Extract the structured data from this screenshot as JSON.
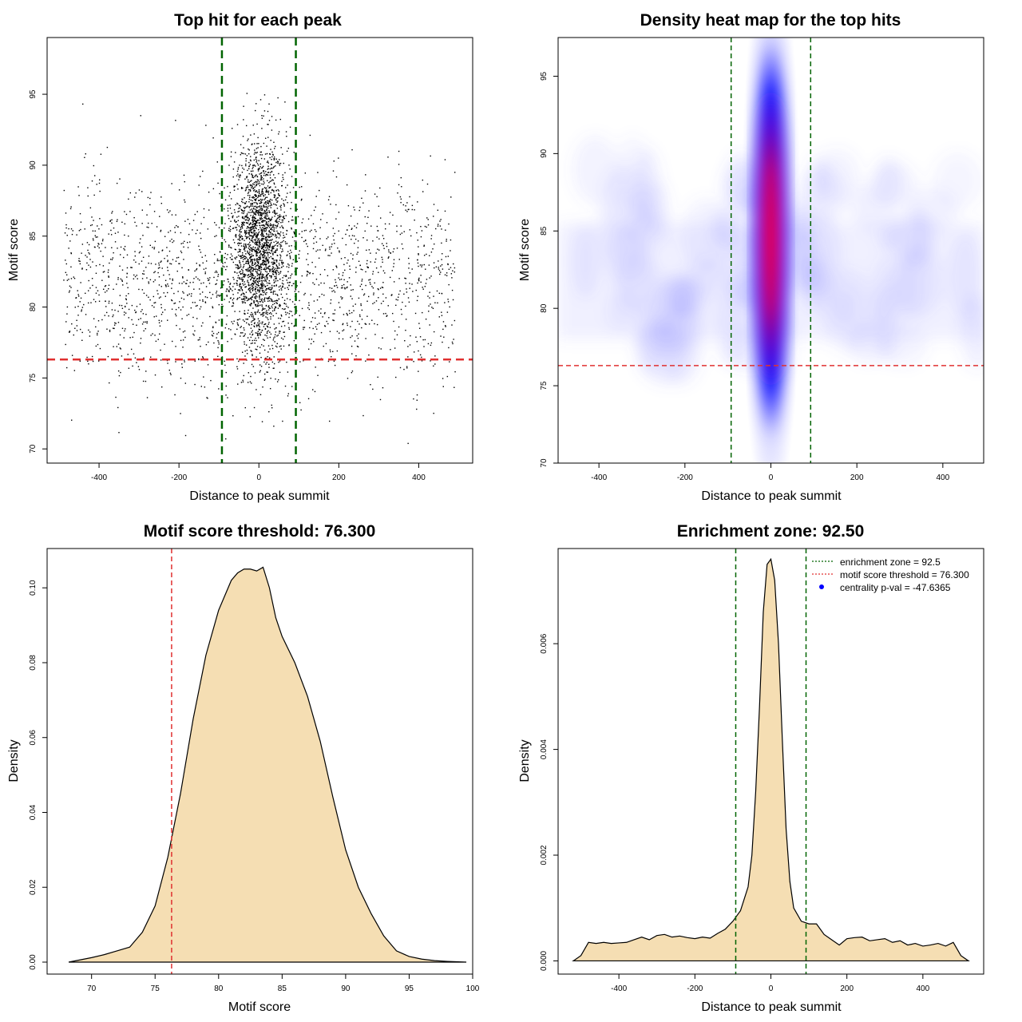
{
  "chart_data": [
    {
      "id": "scatter",
      "type": "scatter",
      "title": "Top hit for each peak",
      "xlabel": "Distance to peak summit",
      "ylabel": "Motif score",
      "xlim": [
        -530,
        535
      ],
      "ylim": [
        69,
        99
      ],
      "x_ticks": [
        -400,
        -200,
        0,
        200,
        400
      ],
      "y_ticks": [
        70,
        75,
        80,
        85,
        90,
        95
      ],
      "x_tick_labels": [
        "-400",
        "-200",
        "0",
        "200",
        "400"
      ],
      "y_tick_labels": [
        "70",
        "75",
        "80",
        "85",
        "90",
        "95"
      ],
      "vlines": [
        -92.5,
        92.5
      ],
      "hline": 76.3,
      "vline_color": "#006400",
      "hline_color": "#e03030",
      "point_color": "#000000",
      "points": {
        "background": {
          "n": 1800,
          "x_range": [
            -490,
            490
          ],
          "y_mean": 82.0,
          "y_sd": 3.6
        },
        "central": {
          "n": 2200,
          "x_mean": 0,
          "x_sd": 35,
          "y_mean": 84.3,
          "y_sd": 3.6
        }
      }
    },
    {
      "id": "heatmap",
      "type": "heatmap",
      "title": "Density heat map for the top hits",
      "xlabel": "Distance to peak summit",
      "ylabel": "Motif score",
      "xlim": [
        -495,
        495
      ],
      "ylim": [
        70,
        97.5
      ],
      "x_ticks": [
        -400,
        -200,
        0,
        200,
        400
      ],
      "y_ticks": [
        70,
        75,
        80,
        85,
        90,
        95
      ],
      "x_tick_labels": [
        "-400",
        "-200",
        "0",
        "200",
        "400"
      ],
      "y_tick_labels": [
        "70",
        "75",
        "80",
        "85",
        "90",
        "95"
      ],
      "vlines": [
        -92.5,
        92.5
      ],
      "hline": 76.3,
      "color_scale": [
        "#ffffff",
        "#0000ff",
        "#ff0000"
      ],
      "peak": {
        "x": 0,
        "y": 84.5
      }
    },
    {
      "id": "score-density",
      "type": "area",
      "title": "Motif score threshold: 76.300",
      "xlabel": "Motif score",
      "ylabel": "Density",
      "xlim": [
        66.5,
        100
      ],
      "ylim": [
        -0.0032,
        0.1105
      ],
      "x_ticks": [
        70,
        75,
        80,
        85,
        90,
        95,
        100
      ],
      "y_ticks": [
        0,
        0.02,
        0.04,
        0.06,
        0.08,
        0.1
      ],
      "x_tick_labels": [
        "70",
        "75",
        "80",
        "85",
        "90",
        "95",
        "100"
      ],
      "y_tick_labels": [
        "0.00",
        "0.02",
        "0.04",
        "0.06",
        "0.08",
        "0.10"
      ],
      "vlines": [
        76.3
      ],
      "vline_color": "#e03030",
      "fill": "#f5deb3",
      "x": [
        68.2,
        70,
        71,
        72,
        73,
        74,
        75,
        76,
        77,
        78,
        79,
        80,
        81,
        81.5,
        82,
        82.5,
        83,
        83.5,
        84,
        84.5,
        85,
        86,
        87,
        88,
        89,
        90,
        91,
        92,
        93,
        94,
        95,
        96,
        97,
        98,
        99.5
      ],
      "y": [
        0,
        0.0012,
        0.002,
        0.003,
        0.004,
        0.008,
        0.015,
        0.028,
        0.045,
        0.065,
        0.082,
        0.094,
        0.102,
        0.104,
        0.105,
        0.105,
        0.1045,
        0.1055,
        0.1,
        0.092,
        0.087,
        0.08,
        0.071,
        0.059,
        0.044,
        0.03,
        0.02,
        0.013,
        0.007,
        0.003,
        0.0015,
        0.0008,
        0.0004,
        0.0002,
        0
      ]
    },
    {
      "id": "distance-density",
      "type": "area",
      "title": "Enrichment zone: 92.50",
      "xlabel": "Distance to peak summit",
      "ylabel": "Density",
      "xlim": [
        -560,
        560
      ],
      "ylim": [
        -0.00025,
        0.0078
      ],
      "x_ticks": [
        -400,
        -200,
        0,
        200,
        400
      ],
      "y_ticks": [
        0,
        0.002,
        0.004,
        0.006
      ],
      "x_tick_labels": [
        "-400",
        "-200",
        "0",
        "200",
        "400"
      ],
      "y_tick_labels": [
        "0.000",
        "0.002",
        "0.004",
        "0.006"
      ],
      "vlines": [
        -92.5,
        92.5
      ],
      "vline_color": "#006400",
      "fill": "#f5deb3",
      "x": [
        -520,
        -500,
        -480,
        -460,
        -440,
        -420,
        -400,
        -380,
        -360,
        -340,
        -320,
        -300,
        -280,
        -260,
        -240,
        -220,
        -200,
        -180,
        -160,
        -140,
        -120,
        -100,
        -80,
        -60,
        -50,
        -40,
        -30,
        -20,
        -10,
        0,
        10,
        20,
        30,
        40,
        50,
        60,
        80,
        100,
        120,
        140,
        160,
        180,
        200,
        220,
        240,
        260,
        280,
        300,
        320,
        340,
        360,
        380,
        400,
        420,
        440,
        460,
        480,
        500,
        520
      ],
      "y": [
        0,
        0.0001,
        0.00035,
        0.00033,
        0.00035,
        0.00033,
        0.00034,
        0.00035,
        0.0004,
        0.00045,
        0.0004,
        0.00048,
        0.0005,
        0.00045,
        0.00047,
        0.00044,
        0.00042,
        0.00045,
        0.00043,
        0.00052,
        0.0006,
        0.00075,
        0.00095,
        0.0014,
        0.002,
        0.0032,
        0.0048,
        0.0066,
        0.0075,
        0.0076,
        0.0072,
        0.006,
        0.0042,
        0.0025,
        0.0015,
        0.001,
        0.00075,
        0.0007,
        0.0007,
        0.0005,
        0.0004,
        0.0003,
        0.00042,
        0.00044,
        0.00045,
        0.00038,
        0.0004,
        0.00042,
        0.00035,
        0.00038,
        0.0003,
        0.00033,
        0.00028,
        0.0003,
        0.00033,
        0.00028,
        0.00035,
        0.0001,
        0
      ]
    }
  ],
  "legend": {
    "items": [
      {
        "label": "enrichment zone = 92.5",
        "color": "#006400",
        "kind": "dotted-line"
      },
      {
        "label": "motif score threshold = 76.300",
        "color": "#e03030",
        "kind": "dotted-line"
      },
      {
        "label": "centrality p-val = -47.6365",
        "color": "#0000ff",
        "kind": "point"
      }
    ]
  }
}
